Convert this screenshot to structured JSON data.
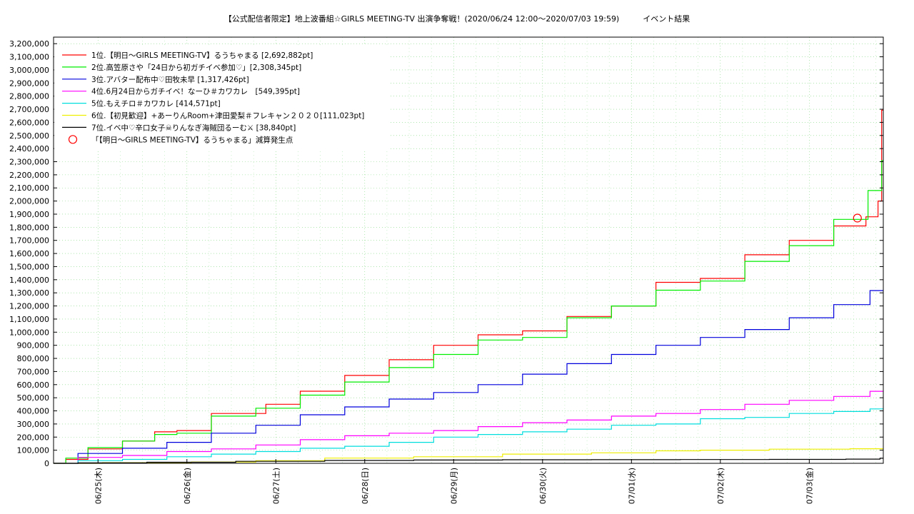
{
  "chart_data": {
    "type": "line",
    "title": "【公式配信者限定】地上波番組☆GIRLS MEETING-TV 出演争奪戦！(2020/06/24 12:00〜2020/07/03 19:59)　　　イベント結果",
    "xlabel": "",
    "ylabel": "",
    "x_start": "2020-06-24 12:00",
    "x_end": "2020-07-03 19:59",
    "ylim": [
      0,
      3250000
    ],
    "y_ticks": [
      0,
      100000,
      200000,
      300000,
      400000,
      500000,
      600000,
      700000,
      800000,
      900000,
      1000000,
      1100000,
      1200000,
      1300000,
      1400000,
      1500000,
      1600000,
      1700000,
      1800000,
      1900000,
      2000000,
      2100000,
      2200000,
      2300000,
      2400000,
      2500000,
      2600000,
      2700000,
      2800000,
      2900000,
      3000000,
      3100000,
      3200000
    ],
    "y_tick_labels": [
      "0",
      "100,000",
      "200,000",
      "300,000",
      "400,000",
      "500,000",
      "600,000",
      "700,000",
      "800,000",
      "900,000",
      "1,000,000",
      "1,100,000",
      "1,200,000",
      "1,300,000",
      "1,400,000",
      "1,500,000",
      "1,600,000",
      "1,700,000",
      "1,800,000",
      "1,900,000",
      "2,000,000",
      "2,100,000",
      "2,200,000",
      "2,300,000",
      "2,400,000",
      "2,500,000",
      "2,600,000",
      "2,700,000",
      "2,800,000",
      "2,900,000",
      "3,000,000",
      "3,100,000",
      "3,200,000"
    ],
    "x_ticks": [
      "06/25(木)",
      "06/26(金)",
      "06/27(土)",
      "06/28(日)",
      "06/29(月)",
      "06/30(火)",
      "07/01(水)",
      "07/02(木)",
      "07/03(金)"
    ],
    "x_tick_dates": [
      "2020-06-25",
      "2020-06-26",
      "2020-06-27",
      "2020-06-28",
      "2020-06-29",
      "2020-06-30",
      "2020-07-01",
      "2020-07-02",
      "2020-07-03"
    ],
    "grid": true,
    "legend_position": "top-left",
    "series": [
      {
        "name": "1位.【明日〜GIRLS MEETING-TV】るうちゃまる [2,692,882pt]",
        "color": "#ff0000",
        "x": [
          "2020-06-24 12:00",
          "2020-06-24 18:00",
          "2020-06-25 00:00",
          "2020-06-25 12:00",
          "2020-06-25 18:00",
          "2020-06-26 00:00",
          "2020-06-26 12:00",
          "2020-06-26 18:00",
          "2020-06-27 00:00",
          "2020-06-27 12:00",
          "2020-06-28 00:00",
          "2020-06-28 12:00",
          "2020-06-29 00:00",
          "2020-06-29 12:00",
          "2020-06-30 00:00",
          "2020-06-30 12:00",
          "2020-07-01 00:00",
          "2020-07-01 12:00",
          "2020-07-02 00:00",
          "2020-07-02 12:00",
          "2020-07-03 00:00",
          "2020-07-03 12:00",
          "2020-07-03 18:00",
          "2020-07-03 19:00",
          "2020-07-03 19:59"
        ],
        "y": [
          0,
          30000,
          110000,
          170000,
          240000,
          250000,
          380000,
          380000,
          450000,
          550000,
          670000,
          790000,
          900000,
          980000,
          1010000,
          1120000,
          1200000,
          1380000,
          1410000,
          1590000,
          1700000,
          1810000,
          1880000,
          2000000,
          2692882
        ]
      },
      {
        "name": "2位.高笠原さや「24日から初ガチイベ参加♡」[2,308,345pt]",
        "color": "#00ee00",
        "x": [
          "2020-06-24 12:00",
          "2020-06-24 18:00",
          "2020-06-25 00:00",
          "2020-06-25 12:00",
          "2020-06-25 18:00",
          "2020-06-26 00:00",
          "2020-06-26 12:00",
          "2020-06-27 00:00",
          "2020-06-27 12:00",
          "2020-06-28 00:00",
          "2020-06-28 12:00",
          "2020-06-29 00:00",
          "2020-06-29 12:00",
          "2020-06-30 00:00",
          "2020-06-30 12:00",
          "2020-07-01 00:00",
          "2020-07-01 12:00",
          "2020-07-02 00:00",
          "2020-07-02 12:00",
          "2020-07-03 00:00",
          "2020-07-03 12:00",
          "2020-07-03 19:00",
          "2020-07-03 19:59"
        ],
        "y": [
          0,
          40000,
          120000,
          170000,
          220000,
          230000,
          360000,
          420000,
          520000,
          620000,
          730000,
          830000,
          940000,
          960000,
          1110000,
          1200000,
          1320000,
          1390000,
          1540000,
          1660000,
          1860000,
          2080000,
          2308345
        ]
      },
      {
        "name": "3位.アバター配布中♡田牧未早 [1,317,426pt]",
        "color": "#0000dd",
        "x": [
          "2020-06-24 12:00",
          "2020-06-25 00:00",
          "2020-06-25 12:00",
          "2020-06-26 00:00",
          "2020-06-26 12:00",
          "2020-06-27 00:00",
          "2020-06-27 12:00",
          "2020-06-28 00:00",
          "2020-06-28 12:00",
          "2020-06-29 00:00",
          "2020-06-29 12:00",
          "2020-06-30 00:00",
          "2020-06-30 12:00",
          "2020-07-01 00:00",
          "2020-07-01 12:00",
          "2020-07-02 00:00",
          "2020-07-02 12:00",
          "2020-07-03 00:00",
          "2020-07-03 12:00",
          "2020-07-03 19:59"
        ],
        "y": [
          0,
          75000,
          115000,
          160000,
          230000,
          290000,
          370000,
          430000,
          490000,
          540000,
          600000,
          680000,
          760000,
          830000,
          900000,
          960000,
          1020000,
          1110000,
          1210000,
          1317426
        ]
      },
      {
        "name": "4位.6月24日からガチイベ！なーひ＃カワカレ　[549,395pt]",
        "color": "#ff00ff",
        "x": [
          "2020-06-24 12:00",
          "2020-06-25 00:00",
          "2020-06-25 12:00",
          "2020-06-26 00:00",
          "2020-06-26 12:00",
          "2020-06-27 00:00",
          "2020-06-27 12:00",
          "2020-06-28 00:00",
          "2020-06-28 12:00",
          "2020-06-29 00:00",
          "2020-06-29 12:00",
          "2020-06-30 00:00",
          "2020-06-30 12:00",
          "2020-07-01 00:00",
          "2020-07-01 12:00",
          "2020-07-02 00:00",
          "2020-07-02 12:00",
          "2020-07-03 00:00",
          "2020-07-03 12:00",
          "2020-07-03 19:59"
        ],
        "y": [
          0,
          45000,
          60000,
          90000,
          110000,
          140000,
          180000,
          210000,
          230000,
          250000,
          280000,
          310000,
          330000,
          360000,
          380000,
          410000,
          450000,
          480000,
          510000,
          549395
        ]
      },
      {
        "name": "5位.もえチロ＃カワカレ [414,571pt]",
        "color": "#00dddd",
        "x": [
          "2020-06-24 12:00",
          "2020-06-25 00:00",
          "2020-06-25 12:00",
          "2020-06-26 00:00",
          "2020-06-26 12:00",
          "2020-06-27 00:00",
          "2020-06-27 12:00",
          "2020-06-28 00:00",
          "2020-06-28 12:00",
          "2020-06-29 00:00",
          "2020-06-29 12:00",
          "2020-06-30 00:00",
          "2020-06-30 12:00",
          "2020-07-01 00:00",
          "2020-07-01 12:00",
          "2020-07-02 00:00",
          "2020-07-02 12:00",
          "2020-07-03 00:00",
          "2020-07-03 12:00",
          "2020-07-03 19:59"
        ],
        "y": [
          0,
          20000,
          30000,
          50000,
          70000,
          90000,
          115000,
          130000,
          160000,
          200000,
          220000,
          240000,
          260000,
          290000,
          300000,
          340000,
          350000,
          380000,
          395000,
          414571
        ]
      },
      {
        "name": "6位.【初見歓迎】+あーりんRoom+津田愛梨＃フレキャン２０２０[111,023pt]",
        "color": "#eeee00",
        "x": [
          "2020-06-24 12:00",
          "2020-06-25 12:00",
          "2020-06-26 12:00",
          "2020-06-27 00:00",
          "2020-06-28 00:00",
          "2020-06-29 00:00",
          "2020-06-30 00:00",
          "2020-07-01 00:00",
          "2020-07-01 12:00",
          "2020-07-02 00:00",
          "2020-07-03 00:00",
          "2020-07-03 19:59"
        ],
        "y": [
          0,
          5000,
          10000,
          20000,
          40000,
          50000,
          70000,
          80000,
          95000,
          100000,
          108000,
          111023
        ]
      },
      {
        "name": "7位.イベ中♡辛口女子☠りんなぎ海賊団るーむ⚔ [38,840pt]",
        "color": "#000000",
        "x": [
          "2020-06-24 12:00",
          "2020-06-25 00:00",
          "2020-06-26 00:00",
          "2020-06-27 00:00",
          "2020-06-28 00:00",
          "2020-06-29 00:00",
          "2020-06-30 00:00",
          "2020-07-01 00:00",
          "2020-07-02 00:00",
          "2020-07-03 00:00",
          "2020-07-03 18:00",
          "2020-07-03 19:59"
        ],
        "y": [
          0,
          3000,
          8000,
          15000,
          22000,
          25000,
          27000,
          28000,
          29000,
          30000,
          32000,
          38840
        ]
      }
    ],
    "markers": [
      {
        "name": "「【明日〜GIRLS MEETING-TV】るうちゃまる」減算発生点",
        "color": "#ff0000",
        "x": "2020-07-03 13:00",
        "y": 1870000
      }
    ]
  }
}
